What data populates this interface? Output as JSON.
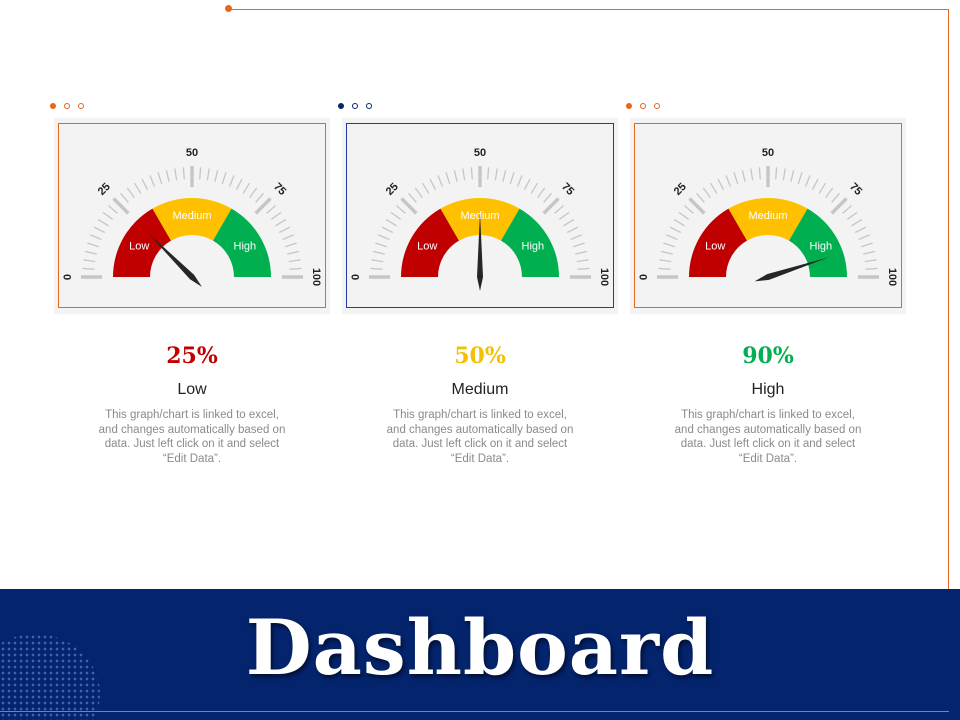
{
  "colors": {
    "accent_orange": "#e8651e",
    "accent_navy": "#04246e",
    "gauge_low": "#c00000",
    "gauge_medium": "#ffc000",
    "gauge_high": "#00b050",
    "tick": "#c6c6c6",
    "needle": "#262626"
  },
  "footer": {
    "title": "Dashboard"
  },
  "gauges": [
    {
      "value": 25,
      "percent_label": "25%",
      "level": "Low",
      "percent_color": "#c00000",
      "border_color": "#e8651e",
      "dot_color": "#e8651e",
      "scale": [
        "0",
        "25",
        "50",
        "75",
        "100"
      ],
      "zones": [
        "Low",
        "Medium",
        "High"
      ],
      "description": "This graph/chart is linked to excel, and changes automatically based on data. Just left click on it and select “Edit Data”."
    },
    {
      "value": 50,
      "percent_label": "50%",
      "level": "Medium",
      "percent_color": "#f5c000",
      "border_color": "#1f3aa0",
      "dot_color": "#04246e",
      "scale": [
        "0",
        "25",
        "50",
        "75",
        "100"
      ],
      "zones": [
        "Low",
        "Medium",
        "High"
      ],
      "description": "This graph/chart is linked to excel, and changes automatically based on data. Just left click on it and select “Edit Data”."
    },
    {
      "value": 90,
      "percent_label": "90%",
      "level": "High",
      "percent_color": "#00b050",
      "border_color": "#e8651e",
      "dot_color": "#e8651e",
      "scale": [
        "0",
        "25",
        "50",
        "75",
        "100"
      ],
      "zones": [
        "Low",
        "Medium",
        "High"
      ],
      "description": "This graph/chart is linked to excel, and changes automatically based on data. Just left click on it and select “Edit Data”."
    }
  ]
}
